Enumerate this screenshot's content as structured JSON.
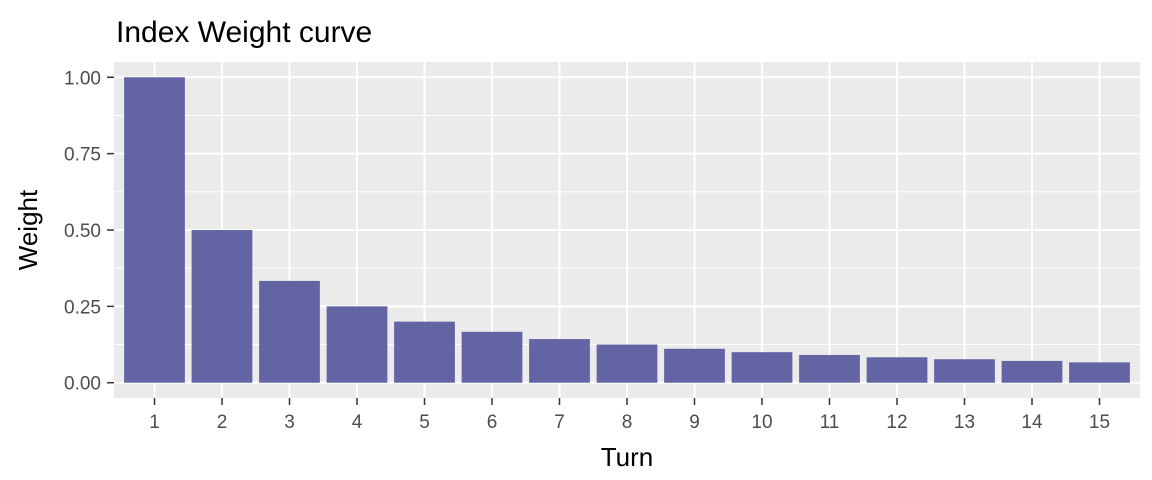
{
  "chart_data": {
    "type": "bar",
    "title": "Index Weight curve",
    "xlabel": "Turn",
    "ylabel": "Weight",
    "categories": [
      "1",
      "2",
      "3",
      "4",
      "5",
      "6",
      "7",
      "8",
      "9",
      "10",
      "11",
      "12",
      "13",
      "14",
      "15"
    ],
    "values": [
      1.0,
      0.5,
      0.3333,
      0.25,
      0.2,
      0.1667,
      0.1429,
      0.125,
      0.1111,
      0.1,
      0.0909,
      0.0833,
      0.0769,
      0.0714,
      0.0667
    ],
    "ylim": [
      0,
      1.05
    ],
    "yticks": [
      0,
      0.25,
      0.5,
      0.75,
      1.0
    ],
    "ytick_labels": [
      "0.00",
      "0.25",
      "0.50",
      "0.75",
      "1.00"
    ],
    "bar_color": "#6264a3",
    "panel_background": "#ebebeb",
    "grid_color": "#ffffff",
    "grid": true
  }
}
